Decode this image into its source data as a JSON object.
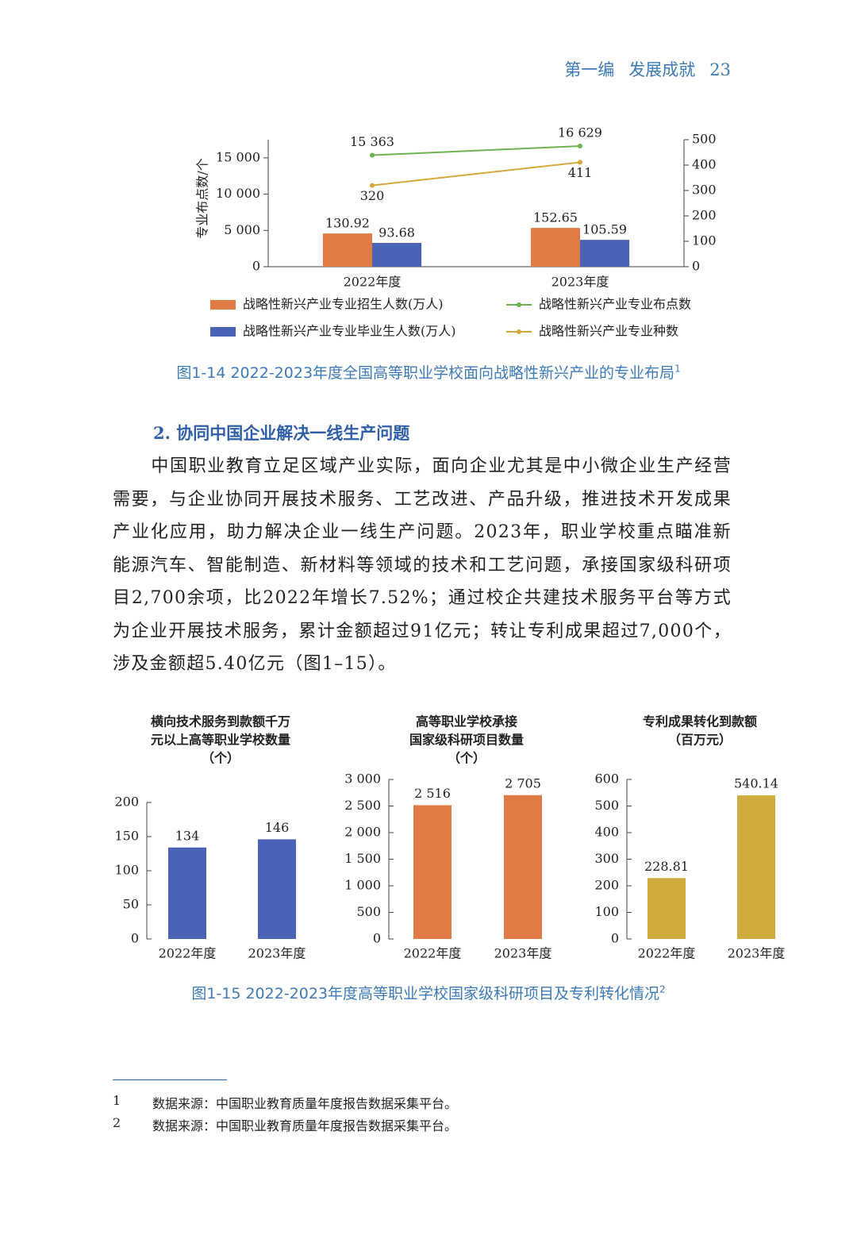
{
  "header": {
    "section": "第一编",
    "title": "发展成就",
    "page": "23"
  },
  "chart_data": [
    {
      "type": "combo",
      "categories": [
        "2022年度",
        "2023年度"
      ],
      "y_label": "专业布点数/个",
      "ylim": [
        0,
        17500
      ],
      "yticks": [
        0,
        {
          "value": 5000,
          "label": "5 000"
        },
        {
          "value": 10000,
          "label": "10 000"
        },
        {
          "value": 15000,
          "label": "15 000"
        }
      ],
      "y2lim": [
        0,
        500
      ],
      "y2ticks": [
        0,
        100,
        200,
        300,
        400,
        500
      ],
      "series": [
        {
          "name": "战略性新兴产业专业招生人数(万人)",
          "type": "bar",
          "axis": "y2",
          "color": "#e07b45",
          "values": [
            130.92,
            152.65
          ]
        },
        {
          "name": "战略性新兴产业专业毕业生人数(万人)",
          "type": "bar",
          "axis": "y2",
          "color": "#4a62b5",
          "values": [
            93.68,
            105.59
          ]
        },
        {
          "name": "战略性新兴产业专业布点数",
          "type": "line",
          "color": "#6db34f",
          "values": [
            15363,
            16629
          ],
          "value_labels": [
            "15 363",
            "16 629"
          ]
        },
        {
          "name": "战略性新兴产业专业种数",
          "type": "line",
          "axis": "y2",
          "color": "#d4a93a",
          "values": [
            320,
            411
          ]
        }
      ]
    },
    {
      "type": "bar",
      "title": [
        "横向技术服务到款额千万",
        "元以上高等职业学校数量",
        "（个）"
      ],
      "categories": [
        "2022年度",
        "2023年度"
      ],
      "values": [
        134,
        146
      ],
      "color": "#4a62b5",
      "ylim": [
        0,
        200
      ],
      "yticks": [
        0,
        50,
        100,
        150,
        200
      ]
    },
    {
      "type": "bar",
      "title": [
        "高等职业学校承接",
        "国家级科研项目数量",
        "（个）"
      ],
      "categories": [
        "2022年度",
        "2023年度"
      ],
      "values": [
        2516,
        2705
      ],
      "value_labels": [
        "2 516",
        "2 705"
      ],
      "color": "#e07b45",
      "ylim": [
        0,
        3000
      ],
      "yticks": [
        0,
        500,
        {
          "value": 1000,
          "label": "1 000"
        },
        {
          "value": 1500,
          "label": "1 500"
        },
        {
          "value": 2000,
          "label": "2 000"
        },
        {
          "value": 2500,
          "label": "2 500"
        },
        {
          "value": 3000,
          "label": "3 000"
        }
      ]
    },
    {
      "type": "bar",
      "title": [
        "专利成果转化到款额",
        "（百万元）"
      ],
      "categories": [
        "2022年度",
        "2023年度"
      ],
      "values": [
        228.81,
        540.14
      ],
      "color": "#cfab3d",
      "ylim": [
        0,
        600
      ],
      "yticks": [
        0,
        100,
        200,
        300,
        400,
        500,
        600
      ]
    }
  ],
  "figures": [
    {
      "caption": "图1-14  2022-2023年度全国高等职业学校面向战略性新兴产业的专业布局",
      "footnote_ref": "1"
    },
    {
      "caption": "图1-15  2022-2023年度高等职业学校国家级科研项目及专利转化情况",
      "footnote_ref": "2"
    }
  ],
  "section": {
    "heading": "2. 协同中国企业解决一线生产问题",
    "paragraph": "中国职业教育立足区域产业实际，面向企业尤其是中小微企业生产经营需要，与企业协同开展技术服务、工艺改进、产品升级，推进技术开发成果产业化应用，助力解决企业一线生产问题。2023年，职业学校重点瞄准新能源汽车、智能制造、新材料等领域的技术和工艺问题，承接国家级科研项目2,700余项，比2022年增长7.52%；通过校企共建技术服务平台等方式为企业开展技术服务，累计金额超过91亿元；转让专利成果超过7,000个，涉及金额超5.40亿元（图1–15）。"
  },
  "footnotes": [
    {
      "number": "1",
      "text": "数据来源：中国职业教育质量年度报告数据采集平台。"
    },
    {
      "number": "2",
      "text": "数据来源：中国职业教育质量年度报告数据采集平台。"
    }
  ]
}
